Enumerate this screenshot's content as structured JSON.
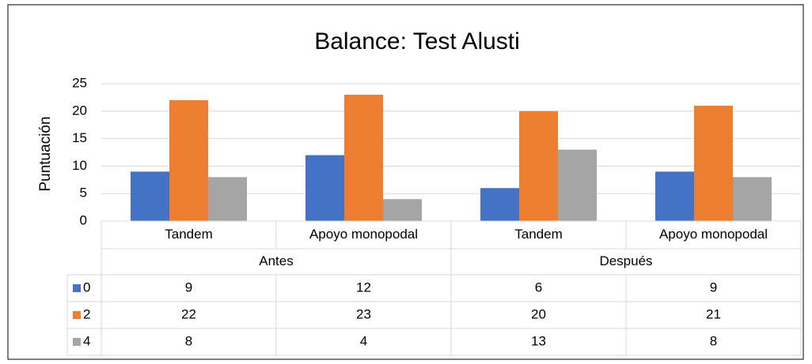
{
  "chart_data": {
    "type": "bar",
    "title": "Balance: Test Alusti",
    "y_label": "Puntuación",
    "categories": [
      "Tandem",
      "Apoyo monopodal",
      "Tandem",
      "Apoyo monopodal"
    ],
    "category_groups": [
      "Antes",
      "Después"
    ],
    "series": [
      {
        "name": "0",
        "color": "#4472c4",
        "values": [
          9,
          12,
          6,
          9
        ]
      },
      {
        "name": "2",
        "color": "#ed7d31",
        "values": [
          22,
          23,
          20,
          21
        ]
      },
      {
        "name": "4",
        "color": "#a5a5a5",
        "values": [
          8,
          4,
          13,
          8
        ]
      }
    ],
    "ylim": [
      0,
      25
    ],
    "yticks": [
      0,
      5,
      10,
      15,
      20,
      25
    ],
    "grid": true,
    "data_table": true
  }
}
